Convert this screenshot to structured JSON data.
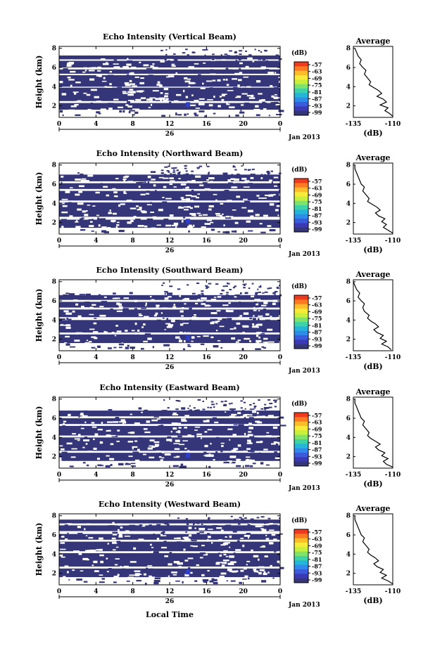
{
  "figure": {
    "xlabel_bottom": "Local Time",
    "date_label": "Jan 2013",
    "day_label": "26",
    "ylabel": "Height (km)",
    "colorbar_unit": "(dB)",
    "colorbar_ticks": [
      "-57",
      "-63",
      "-69",
      "-75",
      "-81",
      "-87",
      "-93",
      "-99"
    ],
    "colorbar_colors": [
      "#f03a1f",
      "#fb7a22",
      "#fdbd2b",
      "#f7ea38",
      "#c7ef3c",
      "#7fe36a",
      "#3fd2a5",
      "#25b5d8",
      "#2f8bea",
      "#3a5bdc",
      "#3c39b4",
      "#353579"
    ],
    "profile_title": "Average",
    "profile_xlabel": "(dB)",
    "profile_xticks": [
      "-135",
      "-110"
    ],
    "yticks": [
      "2",
      "4",
      "6",
      "8"
    ],
    "xticks": [
      "0",
      "4",
      "8",
      "12",
      "16",
      "20",
      "0"
    ]
  },
  "chart_data": [
    {
      "type": "heatmap",
      "title": "Echo Intensity (Vertical Beam)",
      "xlim": [
        0,
        24
      ],
      "ylim": [
        0.8,
        8.2
      ],
      "bands": [
        [
          1.6,
          2.3
        ],
        [
          2.5,
          3.9
        ],
        [
          4.0,
          5.2
        ],
        [
          5.35,
          5.8
        ],
        [
          6.0,
          6.7
        ],
        [
          6.85,
          7.25
        ]
      ],
      "gaps": [
        [
          1.1,
          1.6
        ],
        [
          2.3,
          2.5
        ],
        [
          5.8,
          6.0
        ],
        [
          7.25,
          8.2
        ]
      ],
      "noise_top": 6.7,
      "noise_seed": 11,
      "profile": {
        "title": "Average",
        "xlim": [
          -135,
          -110
        ],
        "ylim": [
          0.8,
          8.2
        ],
        "x": [
          -110,
          -112,
          -115,
          -113,
          -118,
          -114,
          -116,
          -120,
          -117,
          -119,
          -122,
          -125,
          -124,
          -126,
          -128,
          -127,
          -129,
          -131,
          -130,
          -132,
          -133,
          -134
        ],
        "y": [
          0.9,
          1.2,
          1.5,
          1.8,
          2.1,
          2.4,
          2.7,
          3.0,
          3.3,
          3.6,
          3.9,
          4.2,
          4.5,
          4.9,
          5.3,
          5.7,
          6.0,
          6.4,
          6.8,
          7.2,
          7.6,
          8.0
        ]
      }
    },
    {
      "type": "heatmap",
      "title": "Echo Intensity (Northward Beam)",
      "xlim": [
        0,
        24
      ],
      "ylim": [
        0.8,
        8.2
      ],
      "bands": [
        [
          1.45,
          2.3
        ],
        [
          2.6,
          4.1
        ],
        [
          4.3,
          5.3
        ],
        [
          5.5,
          6.1
        ],
        [
          6.3,
          7.0
        ]
      ],
      "gaps": [
        [
          1.1,
          1.45
        ],
        [
          2.3,
          2.6
        ],
        [
          6.1,
          6.3
        ],
        [
          7.0,
          8.2
        ]
      ],
      "noise_top": 7.0,
      "noise_seed": 23,
      "profile": {
        "title": "Average",
        "xlim": [
          -135,
          -110
        ],
        "ylim": [
          0.8,
          8.2
        ],
        "x": [
          -110,
          -113,
          -116,
          -114,
          -117,
          -115,
          -119,
          -121,
          -118,
          -120,
          -123,
          -126,
          -125,
          -127,
          -129,
          -128,
          -130,
          -131,
          -132,
          -133,
          -134,
          -134
        ],
        "y": [
          0.9,
          1.2,
          1.5,
          1.8,
          2.1,
          2.4,
          2.7,
          3.0,
          3.3,
          3.6,
          3.9,
          4.2,
          4.5,
          4.9,
          5.3,
          5.7,
          6.0,
          6.4,
          6.8,
          7.2,
          7.6,
          8.0
        ]
      }
    },
    {
      "type": "heatmap",
      "title": "Echo Intensity (Southward Beam)",
      "xlim": [
        0,
        24
      ],
      "ylim": [
        0.8,
        8.2
      ],
      "bands": [
        [
          1.6,
          2.5
        ],
        [
          2.7,
          4.0
        ],
        [
          4.3,
          5.1
        ],
        [
          5.3,
          5.9
        ],
        [
          6.1,
          6.6
        ]
      ],
      "gaps": [
        [
          1.1,
          1.6
        ],
        [
          2.5,
          2.7
        ],
        [
          5.9,
          6.1
        ],
        [
          6.6,
          8.2
        ]
      ],
      "noise_top": 6.6,
      "noise_seed": 37,
      "profile": {
        "title": "Average",
        "xlim": [
          -135,
          -110
        ],
        "ylim": [
          0.8,
          8.2
        ],
        "x": [
          -111,
          -113,
          -117,
          -114,
          -118,
          -116,
          -120,
          -122,
          -119,
          -121,
          -124,
          -126,
          -125,
          -128,
          -129,
          -128,
          -130,
          -132,
          -131,
          -133,
          -134,
          -135
        ],
        "y": [
          0.9,
          1.2,
          1.5,
          1.8,
          2.1,
          2.4,
          2.7,
          3.0,
          3.3,
          3.6,
          3.9,
          4.2,
          4.5,
          4.9,
          5.3,
          5.7,
          6.0,
          6.4,
          6.8,
          7.2,
          7.6,
          8.0
        ]
      }
    },
    {
      "type": "heatmap",
      "title": "Echo Intensity (Eastward Beam)",
      "xlim": [
        0,
        24
      ],
      "ylim": [
        0.8,
        8.2
      ],
      "bands": [
        [
          1.55,
          2.4
        ],
        [
          2.6,
          4.0
        ],
        [
          4.2,
          5.2
        ],
        [
          5.4,
          6.0
        ],
        [
          6.2,
          6.8
        ]
      ],
      "gaps": [
        [
          1.1,
          1.55
        ],
        [
          2.4,
          2.6
        ],
        [
          6.0,
          6.2
        ],
        [
          6.8,
          8.2
        ]
      ],
      "noise_top": 6.8,
      "noise_seed": 53,
      "profile": {
        "title": "Average",
        "xlim": [
          -135,
          -110
        ],
        "ylim": [
          0.8,
          8.2
        ],
        "x": [
          -110,
          -114,
          -116,
          -113,
          -117,
          -115,
          -119,
          -121,
          -118,
          -121,
          -124,
          -126,
          -125,
          -127,
          -129,
          -128,
          -130,
          -131,
          -132,
          -133,
          -134,
          -134
        ],
        "y": [
          0.9,
          1.2,
          1.5,
          1.8,
          2.1,
          2.4,
          2.7,
          3.0,
          3.3,
          3.6,
          3.9,
          4.2,
          4.5,
          4.9,
          5.3,
          5.7,
          6.0,
          6.4,
          6.8,
          7.2,
          7.6,
          8.0
        ]
      }
    },
    {
      "type": "heatmap",
      "title": "Echo Intensity (Westward Beam)",
      "xlim": [
        0,
        24
      ],
      "ylim": [
        0.8,
        8.2
      ],
      "bands": [
        [
          1.6,
          2.5
        ],
        [
          2.7,
          4.1
        ],
        [
          4.3,
          5.3
        ],
        [
          5.5,
          6.1
        ],
        [
          6.4,
          7.0
        ],
        [
          7.2,
          7.6
        ]
      ],
      "gaps": [
        [
          1.1,
          1.6
        ],
        [
          2.5,
          2.7
        ],
        [
          6.1,
          6.4
        ],
        [
          7.6,
          8.2
        ]
      ],
      "noise_top": 7.0,
      "noise_seed": 71,
      "profile": {
        "title": "Average",
        "xlim": [
          -135,
          -110
        ],
        "ylim": [
          0.8,
          8.2
        ],
        "x": [
          -110,
          -113,
          -117,
          -114,
          -118,
          -116,
          -120,
          -122,
          -119,
          -121,
          -124,
          -126,
          -125,
          -127,
          -129,
          -128,
          -130,
          -131,
          -132,
          -133,
          -134,
          -134
        ],
        "y": [
          0.9,
          1.2,
          1.5,
          1.8,
          2.1,
          2.4,
          2.7,
          3.0,
          3.3,
          3.6,
          3.9,
          4.2,
          4.5,
          4.9,
          5.3,
          5.7,
          6.0,
          6.4,
          6.8,
          7.2,
          7.6,
          8.0
        ]
      }
    }
  ]
}
